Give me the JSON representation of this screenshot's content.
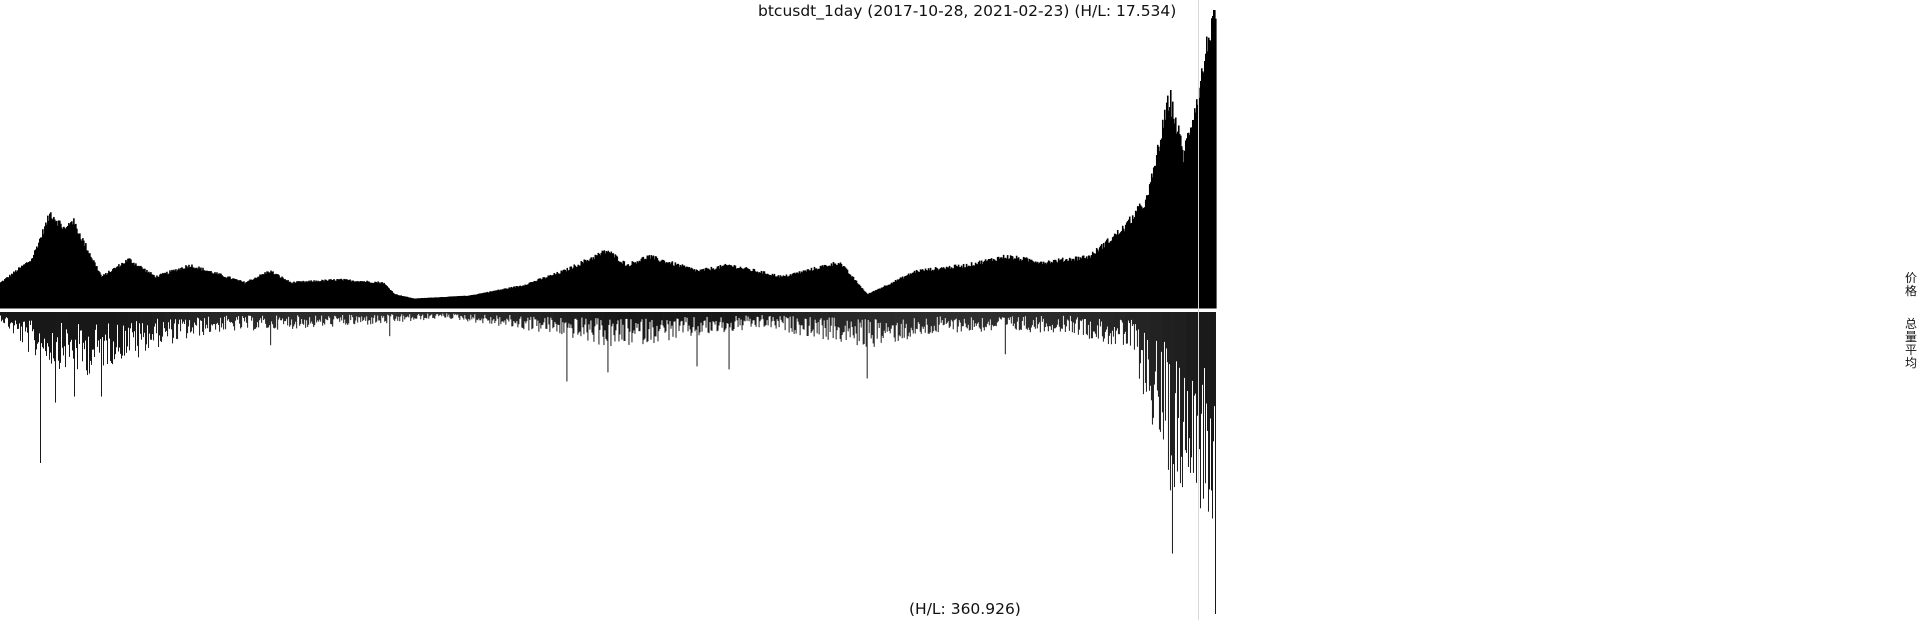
{
  "chart_data": {
    "type": "bar",
    "title": "btcusdt_1day (2017-10-28, 2021-02-23) (H/L: 17.534)",
    "x_range": [
      "2017-10-28",
      "2021-02-23"
    ],
    "price_panel": {
      "hl_ratio": 17.534,
      "label": "价格",
      "anchors": [
        [
          "2017-10-28",
          0.06
        ],
        [
          "2017-11-28",
          0.14
        ],
        [
          "2017-12-17",
          0.3
        ],
        [
          "2018-01-01",
          0.24
        ],
        [
          "2018-01-07",
          0.28
        ],
        [
          "2018-02-06",
          0.08
        ],
        [
          "2018-03-05",
          0.14
        ],
        [
          "2018-04-01",
          0.08
        ],
        [
          "2018-05-05",
          0.12
        ],
        [
          "2018-06-29",
          0.06
        ],
        [
          "2018-07-24",
          0.1
        ],
        [
          "2018-08-14",
          0.06
        ],
        [
          "2018-10-01",
          0.07
        ],
        [
          "2018-11-14",
          0.06
        ],
        [
          "2018-11-26",
          0.02
        ],
        [
          "2018-12-15",
          0.005
        ],
        [
          "2019-02-08",
          0.015
        ],
        [
          "2019-04-02",
          0.05
        ],
        [
          "2019-05-14",
          0.1
        ],
        [
          "2019-06-26",
          0.17
        ],
        [
          "2019-07-16",
          0.12
        ],
        [
          "2019-08-06",
          0.15
        ],
        [
          "2019-09-25",
          0.1
        ],
        [
          "2019-10-26",
          0.12
        ],
        [
          "2019-12-18",
          0.08
        ],
        [
          "2020-02-13",
          0.13
        ],
        [
          "2020-03-12",
          0.02
        ],
        [
          "2020-04-30",
          0.1
        ],
        [
          "2020-06-20",
          0.12
        ],
        [
          "2020-07-28",
          0.15
        ],
        [
          "2020-09-05",
          0.13
        ],
        [
          "2020-10-20",
          0.15
        ],
        [
          "2020-11-24",
          0.25
        ],
        [
          "2020-12-17",
          0.35
        ],
        [
          "2021-01-08",
          0.7
        ],
        [
          "2021-01-22",
          0.5
        ],
        [
          "2021-02-08",
          0.75
        ],
        [
          "2021-02-21",
          1.0
        ],
        [
          "2021-02-23",
          0.92
        ]
      ]
    },
    "volume_panel": {
      "hl_ratio": 360.926,
      "hl_label": "(H/L: 360.926)",
      "label": "总量平均",
      "anchors": [
        [
          "2017-10-28",
          0.02
        ],
        [
          "2017-12-01",
          0.12
        ],
        [
          "2018-01-20",
          0.16
        ],
        [
          "2018-03-15",
          0.1
        ],
        [
          "2018-06-01",
          0.05
        ],
        [
          "2018-09-01",
          0.04
        ],
        [
          "2018-11-20",
          0.03
        ],
        [
          "2019-01-15",
          0.015
        ],
        [
          "2019-05-14",
          0.06
        ],
        [
          "2019-07-01",
          0.09
        ],
        [
          "2019-09-01",
          0.07
        ],
        [
          "2019-12-01",
          0.04
        ],
        [
          "2020-03-12",
          0.09
        ],
        [
          "2020-06-01",
          0.05
        ],
        [
          "2020-10-01",
          0.05
        ],
        [
          "2020-12-01",
          0.1
        ],
        [
          "2021-01-10",
          0.45
        ],
        [
          "2021-02-01",
          0.4
        ],
        [
          "2021-02-23",
          0.55
        ]
      ],
      "spikes": [
        [
          "2017-12-07",
          0.5
        ],
        [
          "2017-12-22",
          0.3
        ],
        [
          "2018-01-10",
          0.28
        ],
        [
          "2018-02-06",
          0.28
        ],
        [
          "2018-03-15",
          0.15
        ],
        [
          "2018-07-25",
          0.11
        ],
        [
          "2018-11-21",
          0.08
        ],
        [
          "2019-05-17",
          0.23
        ],
        [
          "2019-06-27",
          0.2
        ],
        [
          "2019-09-24",
          0.18
        ],
        [
          "2019-10-26",
          0.19
        ],
        [
          "2020-03-12",
          0.22
        ],
        [
          "2020-07-28",
          0.14
        ],
        [
          "2020-12-27",
          0.26
        ],
        [
          "2021-01-04",
          0.36
        ],
        [
          "2021-01-11",
          0.8
        ],
        [
          "2021-01-21",
          0.58
        ],
        [
          "2021-02-08",
          0.65
        ],
        [
          "2021-02-23",
          1.0
        ]
      ]
    },
    "colors": {
      "bars": "#000000",
      "background": "#ffffff",
      "separator": "#ffffff",
      "cursor_line": "#d9d9d9"
    },
    "axes_visible": false,
    "grid": false
  }
}
